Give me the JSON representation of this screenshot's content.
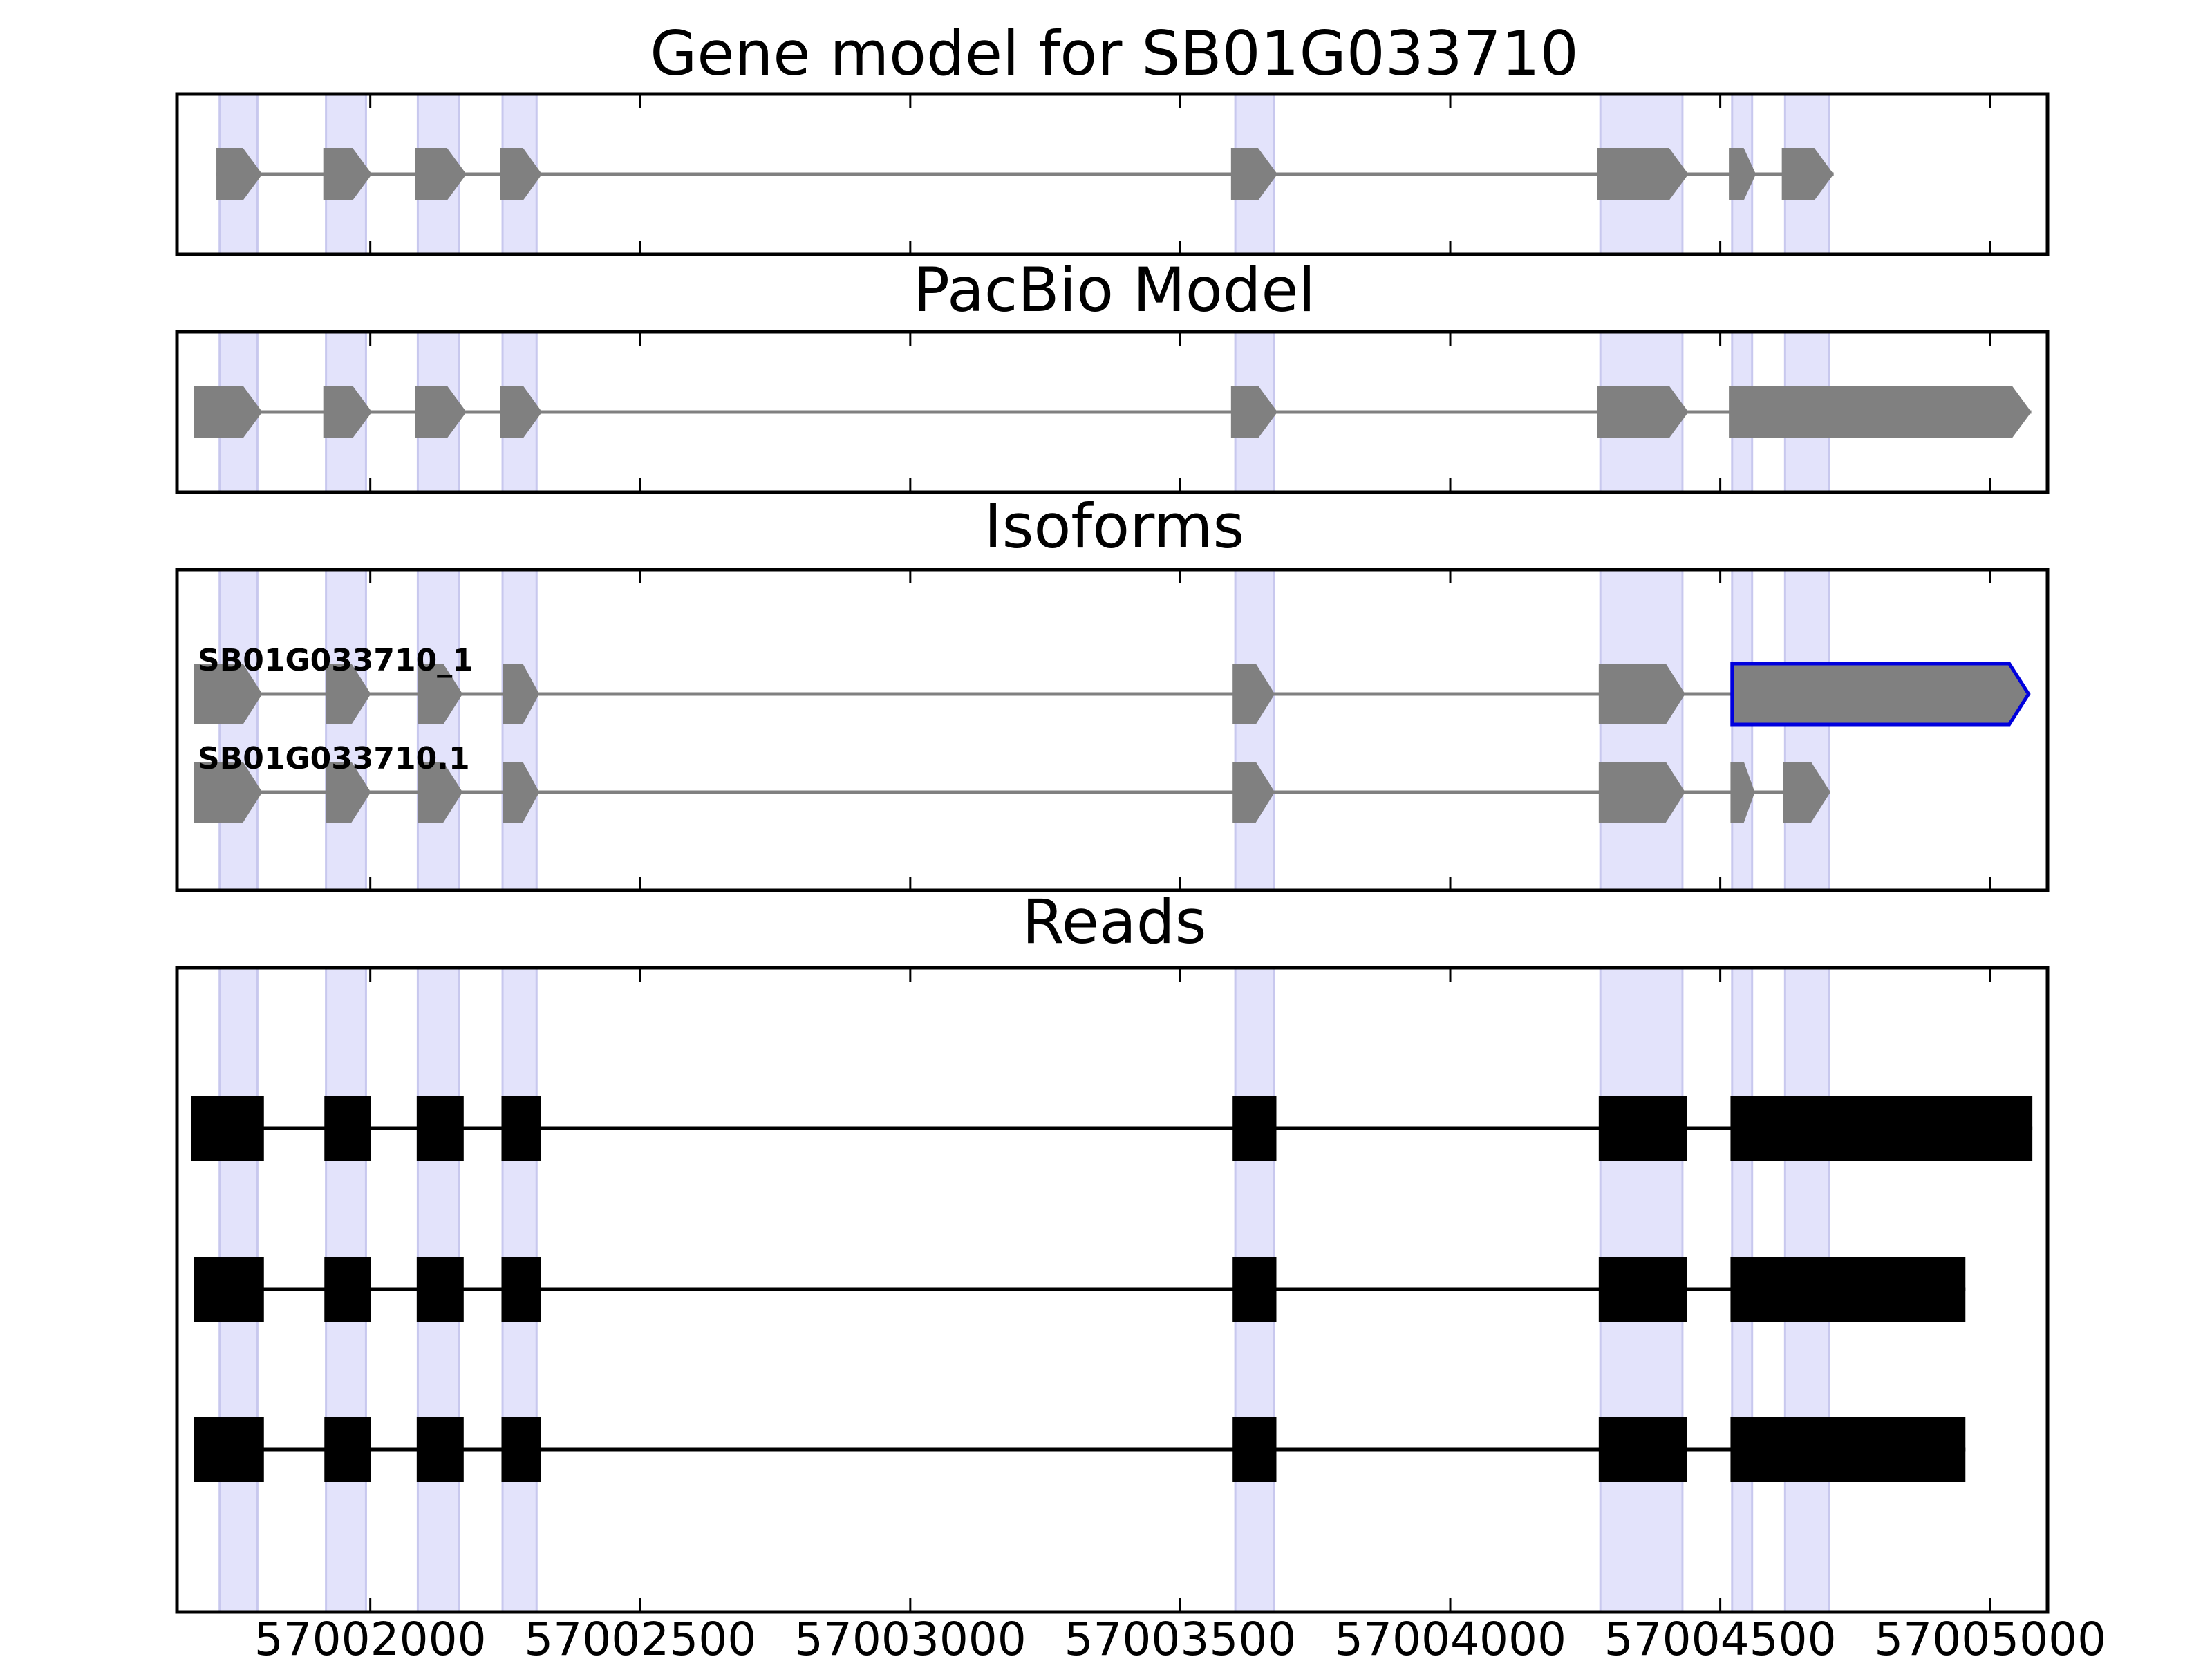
{
  "chart_data": {
    "type": "gene-track",
    "xlim": [
      57001642,
      57005106
    ],
    "xticks": [
      57002000,
      57002500,
      57003000,
      57003500,
      57004000,
      57004500,
      57005000
    ],
    "highlight_exons": [
      [
        57001721,
        57001791
      ],
      [
        57001918,
        57001992
      ],
      [
        57002088,
        57002164
      ],
      [
        57002245,
        57002308
      ],
      [
        57003602,
        57003673
      ],
      [
        57004278,
        57004430
      ],
      [
        57004522,
        57004559
      ],
      [
        57004620,
        57004702
      ]
    ],
    "panels": [
      {
        "key": "gene",
        "title": "Gene model for SB01G033710",
        "tracks": [
          {
            "label": "",
            "exons": [
              [
                57001715,
                57001800
              ],
              [
                57001913,
                57002003
              ],
              [
                57002083,
                57002178
              ],
              [
                57002240,
                57002318
              ],
              [
                57003594,
                57003680
              ],
              [
                57004272,
                57004441
              ],
              [
                57004516,
                57004566
              ],
              [
                57004614,
                57004710
              ]
            ]
          }
        ]
      },
      {
        "key": "pacbio",
        "title": "PacBio Model",
        "tracks": [
          {
            "label": "",
            "exons": [
              [
                57001673,
                57001800
              ],
              [
                57001913,
                57002003
              ],
              [
                57002083,
                57002178
              ],
              [
                57002240,
                57002318
              ],
              [
                57003594,
                57003680
              ],
              [
                57004272,
                57004441
              ],
              [
                57004516,
                57005076
              ]
            ]
          }
        ]
      },
      {
        "key": "isoforms",
        "title": "Isoforms",
        "tracks": [
          {
            "label": "SB01G033710_1",
            "exons": [
              [
                57001673,
                57001800
              ],
              [
                57001918,
                57002001
              ],
              [
                57002088,
                57002171
              ],
              [
                57002245,
                57002313
              ],
              [
                57003597,
                57003675
              ],
              [
                57004275,
                57004435
              ],
              [
                57004522,
                57005071
              ]
            ],
            "outlined_exon": 6,
            "outline_color": "#0000dd"
          },
          {
            "label": "SB01G033710.1",
            "exons": [
              [
                57001673,
                57001800
              ],
              [
                57001918,
                57002001
              ],
              [
                57002088,
                57002171
              ],
              [
                57002245,
                57002313
              ],
              [
                57003597,
                57003675
              ],
              [
                57004275,
                57004435
              ],
              [
                57004519,
                57004564
              ],
              [
                57004617,
                57004704
              ]
            ]
          }
        ]
      },
      {
        "key": "reads",
        "title": "Reads",
        "tracks": [
          {
            "label": "",
            "exons": [
              [
                57001668,
                57001803
              ],
              [
                57001915,
                57002001
              ],
              [
                57002086,
                57002173
              ],
              [
                57002243,
                57002316
              ],
              [
                57003597,
                57003678
              ],
              [
                57004275,
                57004438
              ],
              [
                57004519,
                57005078
              ]
            ]
          },
          {
            "label": "",
            "exons": [
              [
                57001673,
                57001803
              ],
              [
                57001915,
                57002001
              ],
              [
                57002086,
                57002173
              ],
              [
                57002243,
                57002316
              ],
              [
                57003597,
                57003678
              ],
              [
                57004275,
                57004438
              ],
              [
                57004519,
                57004954
              ]
            ]
          },
          {
            "label": "",
            "exons": [
              [
                57001673,
                57001803
              ],
              [
                57001915,
                57002001
              ],
              [
                57002086,
                57002173
              ],
              [
                57002243,
                57002316
              ],
              [
                57003597,
                57003678
              ],
              [
                57004275,
                57004438
              ],
              [
                57004519,
                57004954
              ]
            ]
          }
        ]
      }
    ],
    "colors": {
      "highlight": "#e3e3fb",
      "highlight_edge": "#c8c8ee",
      "gene_exon": "#808080",
      "intron": "#808080",
      "read_exon": "#000000",
      "read_intron": "#000000",
      "frame": "#000000"
    }
  }
}
